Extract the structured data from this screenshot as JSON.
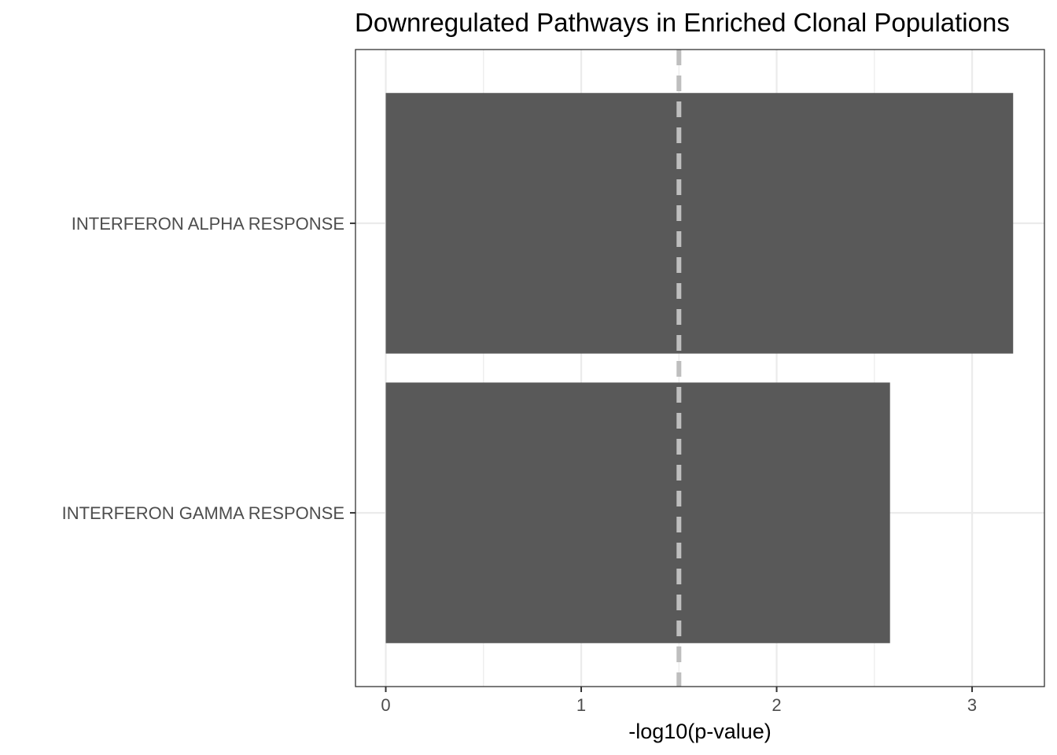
{
  "chart_data": {
    "type": "bar",
    "orientation": "horizontal",
    "title": "Downregulated Pathways in Enriched Clonal Populations",
    "xlabel": "-log10(p-value)",
    "ylabel": "",
    "categories": [
      "INTERFERON ALPHA RESPONSE",
      "INTERFERON GAMMA RESPONSE"
    ],
    "values": [
      3.21,
      2.58
    ],
    "xlim": [
      -0.155,
      3.37
    ],
    "xticks": [
      0,
      1,
      2,
      3
    ],
    "xtick_labels": [
      "0",
      "1",
      "2",
      "3"
    ],
    "threshold_line": {
      "value": 1.5,
      "style": "dashed",
      "color": "#bebebe"
    },
    "bar_color": "#595959",
    "grid": true,
    "grid_color": "#ebebeb",
    "panel_border_color": "#333333",
    "legend": "none"
  }
}
